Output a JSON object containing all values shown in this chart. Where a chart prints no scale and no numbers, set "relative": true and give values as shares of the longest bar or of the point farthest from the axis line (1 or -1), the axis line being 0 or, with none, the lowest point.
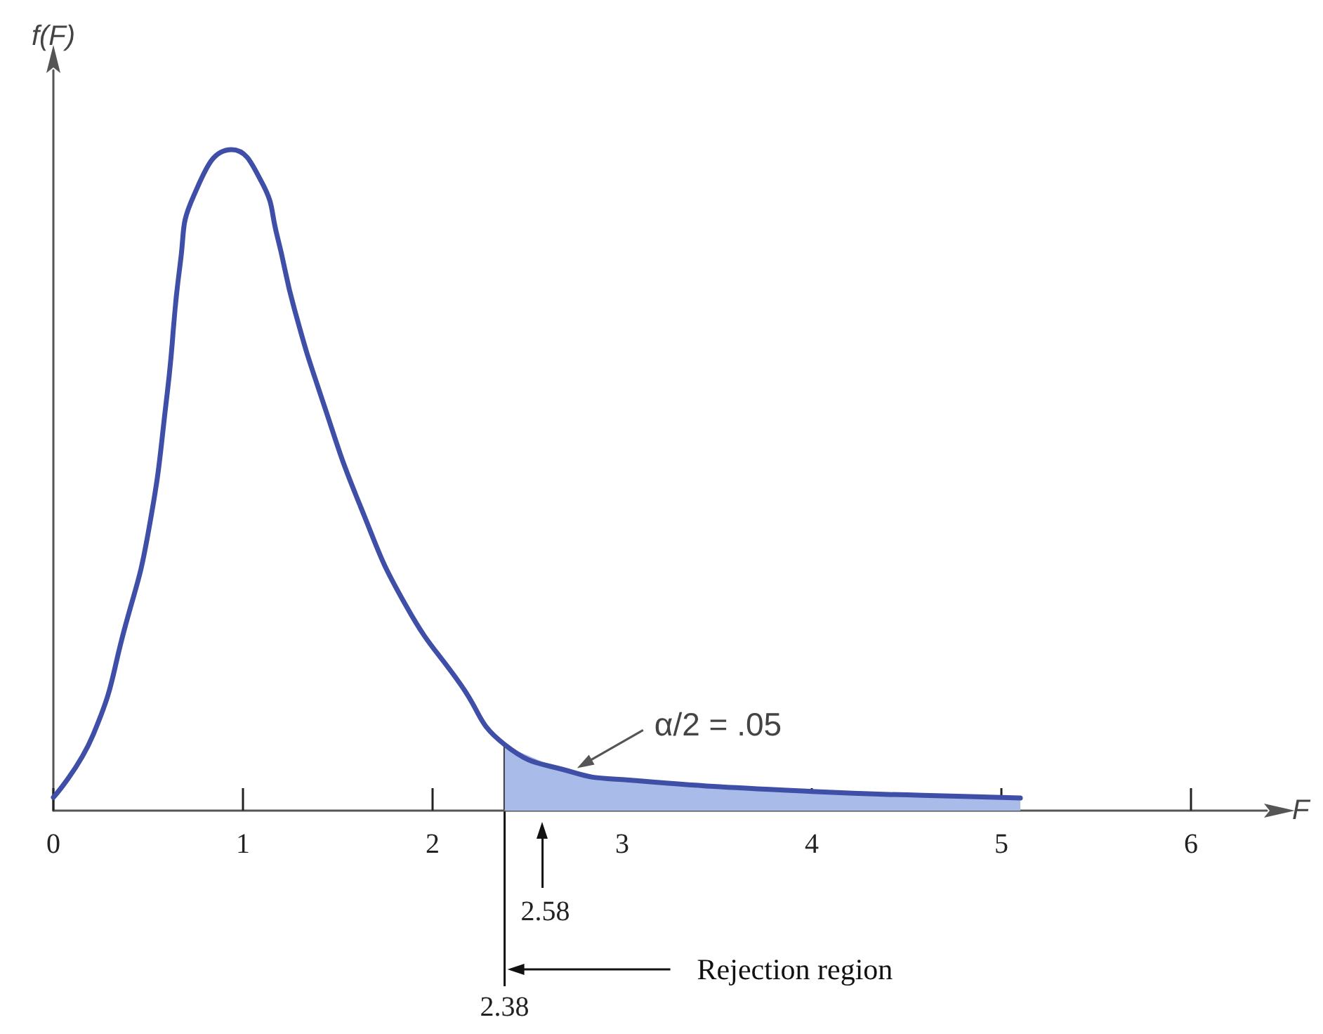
{
  "chart_data": {
    "type": "line",
    "relative": true,
    "xlabel": "F",
    "ylabel": "f(F)",
    "marker": "none",
    "xlim": [
      0,
      6.4
    ],
    "xticks": [
      0,
      1,
      2,
      3,
      4,
      5,
      6
    ],
    "series": [
      {
        "color": "#3f4fa8",
        "x": [
          0,
          0.21,
          0.38,
          0.5,
          0.6,
          0.67,
          0.74,
          0.94,
          1.1,
          1.18,
          1.27,
          1.42,
          1.62,
          1.86,
          2.15,
          2.38,
          2.74,
          3,
          4,
          5,
          5.1
        ],
        "values": [
          0.02,
          0.115,
          0.28,
          0.42,
          0.63,
          0.83,
          0.93,
          1,
          0.95,
          0.87,
          0.76,
          0.62,
          0.46,
          0.31,
          0.19,
          0.1,
          0.058,
          0.047,
          0.029,
          0.02,
          0.019
        ]
      },
      {
        "type": "area",
        "color": "#a9bbe8",
        "x": [
          2.38,
          2.74,
          3,
          4,
          5,
          5.1
        ],
        "values": [
          0.1,
          0.058,
          0.047,
          0.029,
          0.02,
          0.019
        ]
      }
    ],
    "ref_lines": [
      {
        "axis": "x",
        "value": 2.38,
        "label": "2.38",
        "color": "#111111"
      },
      {
        "axis": "x",
        "value": 2.58,
        "label": "2.58",
        "color": "#111111"
      }
    ],
    "annotations": [
      {
        "text": "α/2 = .05",
        "x": 2.74,
        "y": 0.058
      },
      "Rejection region"
    ]
  }
}
